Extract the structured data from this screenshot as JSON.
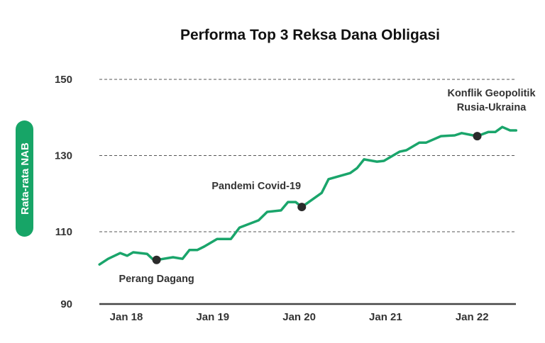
{
  "chart_data": {
    "type": "line",
    "title": "Performa Top 3 Reksa Dana Obligasi",
    "xlabel": "",
    "ylabel": "Rata-rata NAB",
    "ylim": [
      90,
      150
    ],
    "xlim": [
      2017.69,
      2022.51
    ],
    "y_ticks": [
      150,
      130,
      110,
      90
    ],
    "y_gridlines": [
      150,
      130,
      110
    ],
    "grid": "horizontal dashed",
    "x_ticks": [
      {
        "value": 2018.0,
        "label": "Jan 18"
      },
      {
        "value": 2019.0,
        "label": "Jan 19"
      },
      {
        "value": 2020.0,
        "label": "Jan 20"
      },
      {
        "value": 2021.0,
        "label": "Jan 21"
      },
      {
        "value": 2022.0,
        "label": "Jan 22"
      }
    ],
    "series": [
      {
        "name": "Rata-rata NAB",
        "color": "#1aa56b",
        "x": [
          2017.69,
          2017.79,
          2017.93,
          2018.01,
          2018.08,
          2018.24,
          2018.31,
          2018.35,
          2018.54,
          2018.65,
          2018.73,
          2018.82,
          2018.9,
          2019.05,
          2019.21,
          2019.31,
          2019.53,
          2019.63,
          2019.79,
          2019.87,
          2019.96,
          2020.03,
          2020.26,
          2020.34,
          2020.59,
          2020.67,
          2020.75,
          2020.9,
          2020.98,
          2021.16,
          2021.24,
          2021.39,
          2021.47,
          2021.64,
          2021.8,
          2021.88,
          2022.06,
          2022.19,
          2022.27,
          2022.35,
          2022.44,
          2022.51
        ],
        "y": [
          101.4,
          102.9,
          104.4,
          103.7,
          104.6,
          104.2,
          102.7,
          102.6,
          103.3,
          102.9,
          105.2,
          105.2,
          106.1,
          108.1,
          108.1,
          111.1,
          113.0,
          115.2,
          115.6,
          117.8,
          117.8,
          116.5,
          120.2,
          123.8,
          125.4,
          126.7,
          129.0,
          128.4,
          128.6,
          131.0,
          131.4,
          133.4,
          133.4,
          135.1,
          135.3,
          135.9,
          135.1,
          136.2,
          136.2,
          137.5,
          136.6,
          136.6
        ]
      }
    ],
    "annotations": [
      {
        "x": 2018.35,
        "y": 102.6,
        "lines": [
          "Perang Dagang"
        ],
        "position": "below"
      },
      {
        "x": 2020.03,
        "y": 116.5,
        "lines": [
          "Pandemi Covid-19"
        ],
        "position": "above-left"
      },
      {
        "x": 2022.06,
        "y": 135.1,
        "lines": [
          "Konflik Geopolitik",
          "Rusia-Ukraina"
        ],
        "position": "above"
      }
    ],
    "colors": {
      "line": "#1aa56b",
      "ylabel_pill": "#17a567",
      "marker": "#2b2b2b",
      "axis": "#444444",
      "grid": "#555555"
    }
  }
}
